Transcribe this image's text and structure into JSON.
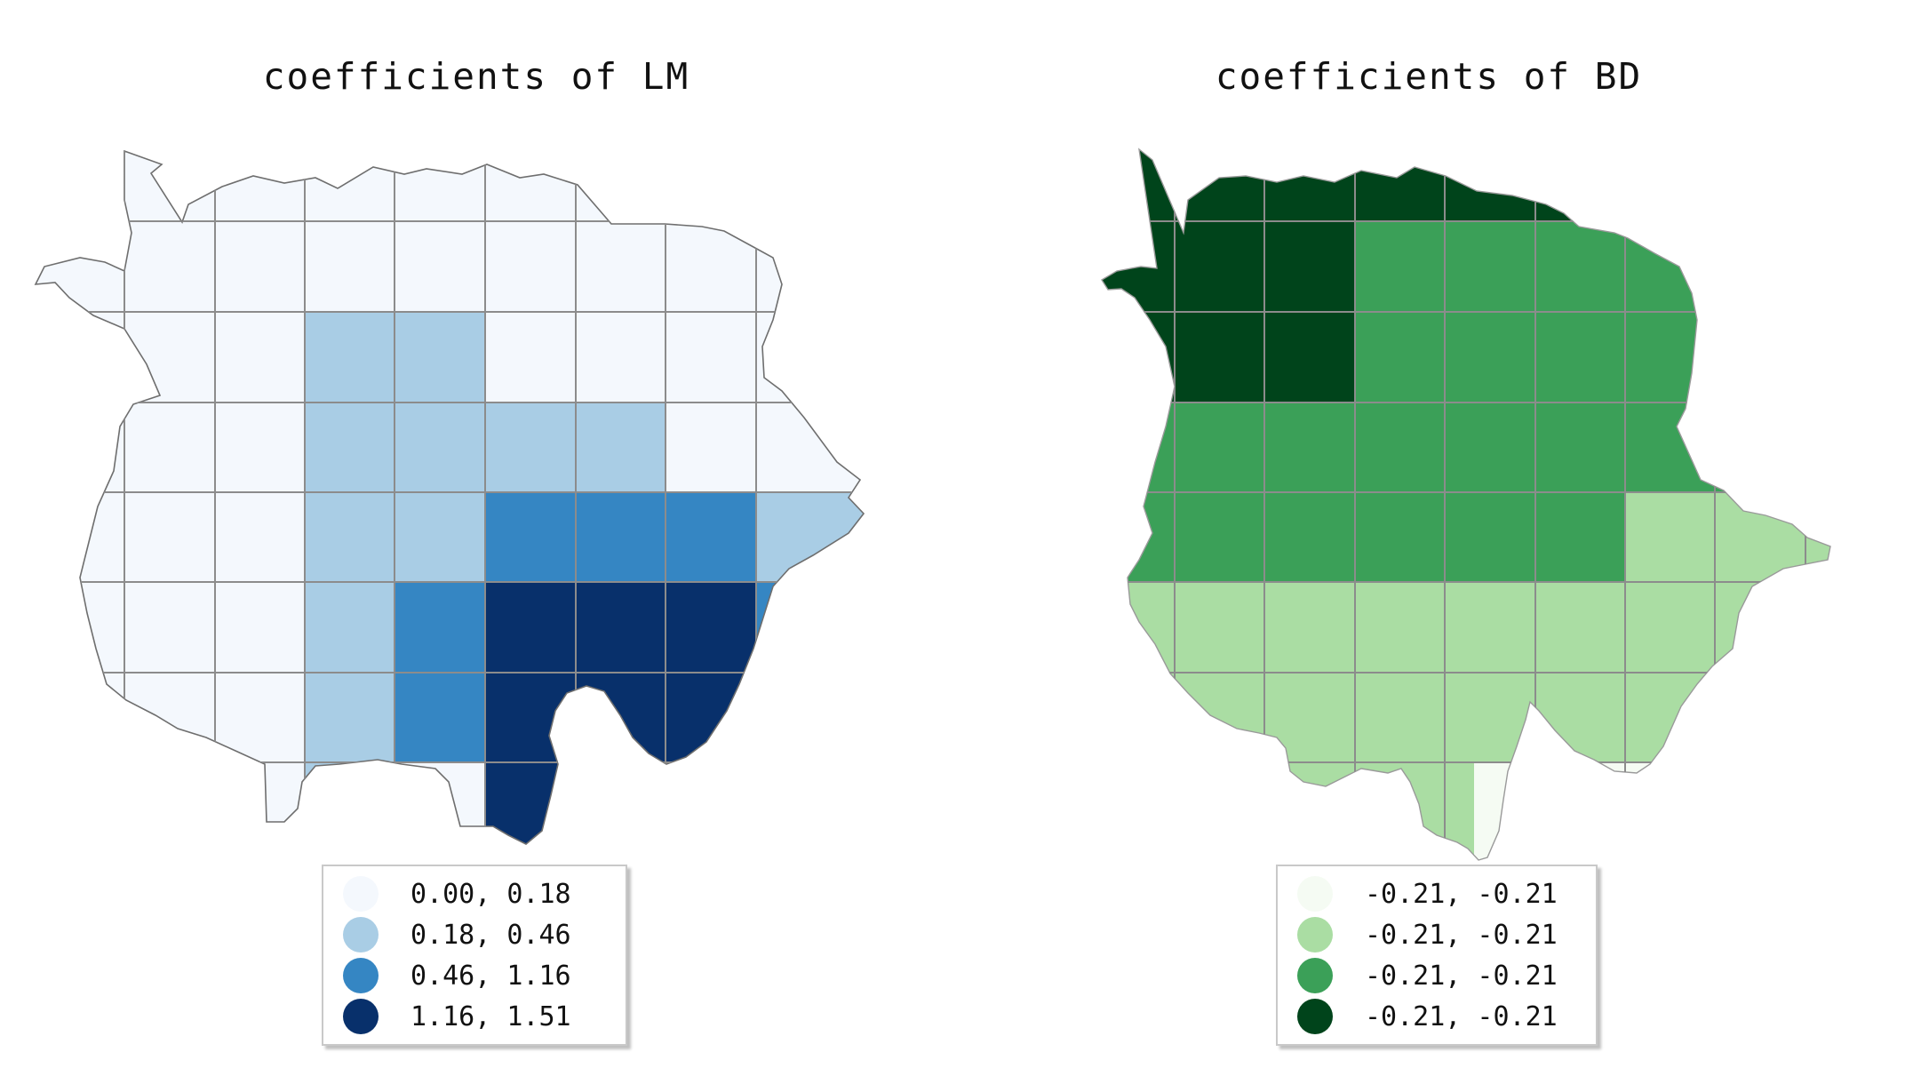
{
  "maps": [
    {
      "title": "coefficients of LM",
      "legend": [
        {
          "label": "0.00, 0.18",
          "color": "#f4f8fd"
        },
        {
          "label": "0.18, 0.46",
          "color": "#a9cde5"
        },
        {
          "label": "0.46, 1.16",
          "color": "#3586c3"
        },
        {
          "label": "1.16, 1.51",
          "color": "#08306b"
        }
      ]
    },
    {
      "title": "coefficients of BD",
      "legend": [
        {
          "label": "-0.21, -0.21",
          "color": "#f5fbf3"
        },
        {
          "label": "-0.21, -0.21",
          "color": "#aadda3"
        },
        {
          "label": "-0.21, -0.21",
          "color": "#3ba058"
        },
        {
          "label": "-0.21, -0.21",
          "color": "#00441b"
        }
      ]
    }
  ]
}
